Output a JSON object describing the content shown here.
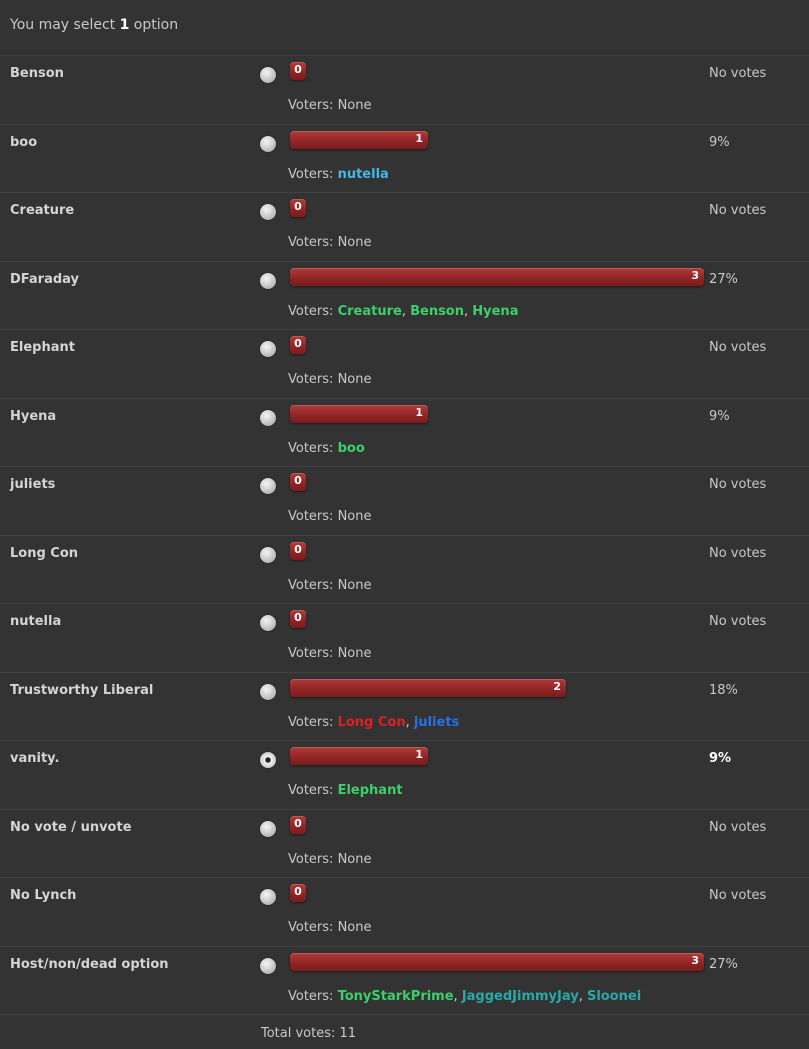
{
  "header": {
    "prefix": "You may select",
    "count": "1",
    "suffix": "option"
  },
  "options": [
    {
      "label": "Benson",
      "votes": 0,
      "percent": "No votes",
      "voters_label": "Voters:",
      "voters": [
        {
          "name": "None",
          "color": "#c8c8c8",
          "plain": true
        }
      ],
      "selected": false
    },
    {
      "label": "boo",
      "votes": 1,
      "percent": "9%",
      "voters_label": "Voters:",
      "voters": [
        {
          "name": "nutella",
          "color": "#3fb8e8"
        }
      ],
      "selected": false
    },
    {
      "label": "Creature",
      "votes": 0,
      "percent": "No votes",
      "voters_label": "Voters:",
      "voters": [
        {
          "name": "None",
          "color": "#c8c8c8",
          "plain": true
        }
      ],
      "selected": false
    },
    {
      "label": "DFaraday",
      "votes": 3,
      "percent": "27%",
      "voters_label": "Voters:",
      "voters": [
        {
          "name": "Creature",
          "color": "#3ccf6a"
        },
        {
          "name": "Benson",
          "color": "#3ccf6a"
        },
        {
          "name": "Hyena",
          "color": "#3ccf6a"
        }
      ],
      "selected": false
    },
    {
      "label": "Elephant",
      "votes": 0,
      "percent": "No votes",
      "voters_label": "Voters:",
      "voters": [
        {
          "name": "None",
          "color": "#c8c8c8",
          "plain": true
        }
      ],
      "selected": false
    },
    {
      "label": "Hyena",
      "votes": 1,
      "percent": "9%",
      "voters_label": "Voters:",
      "voters": [
        {
          "name": "boo",
          "color": "#3ccf6a"
        }
      ],
      "selected": false
    },
    {
      "label": "juliets",
      "votes": 0,
      "percent": "No votes",
      "voters_label": "Voters:",
      "voters": [
        {
          "name": "None",
          "color": "#c8c8c8",
          "plain": true
        }
      ],
      "selected": false
    },
    {
      "label": "Long Con",
      "votes": 0,
      "percent": "No votes",
      "voters_label": "Voters:",
      "voters": [
        {
          "name": "None",
          "color": "#c8c8c8",
          "plain": true
        }
      ],
      "selected": false
    },
    {
      "label": "nutella",
      "votes": 0,
      "percent": "No votes",
      "voters_label": "Voters:",
      "voters": [
        {
          "name": "None",
          "color": "#c8c8c8",
          "plain": true
        }
      ],
      "selected": false
    },
    {
      "label": "Trustworthy Liberal",
      "votes": 2,
      "percent": "18%",
      "voters_label": "Voters:",
      "voters": [
        {
          "name": "Long Con",
          "color": "#e02020"
        },
        {
          "name": "juliets",
          "color": "#2a6ee8"
        }
      ],
      "selected": false
    },
    {
      "label": "vanity.",
      "votes": 1,
      "percent": "9%",
      "voters_label": "Voters:",
      "voters": [
        {
          "name": "Elephant",
          "color": "#3ccf6a"
        }
      ],
      "selected": true
    },
    {
      "label": "No vote / unvote",
      "votes": 0,
      "percent": "No votes",
      "voters_label": "Voters:",
      "voters": [
        {
          "name": "None",
          "color": "#c8c8c8",
          "plain": true
        }
      ],
      "selected": false
    },
    {
      "label": "No Lynch",
      "votes": 0,
      "percent": "No votes",
      "voters_label": "Voters:",
      "voters": [
        {
          "name": "None",
          "color": "#c8c8c8",
          "plain": true
        }
      ],
      "selected": false
    },
    {
      "label": "Host/non/dead option",
      "votes": 3,
      "percent": "27%",
      "voters_label": "Voters:",
      "voters": [
        {
          "name": "TonyStarkPrime",
          "color": "#3ccf6a"
        },
        {
          "name": "JaggedJimmyJay",
          "color": "#2aa8a8"
        },
        {
          "name": "Sloonei",
          "color": "#2aa8a8"
        }
      ],
      "selected": false
    }
  ],
  "max_votes": 3,
  "total": "Total votes: 11",
  "colors": {
    "bar": "#9b2b2b",
    "background": "#333333"
  }
}
